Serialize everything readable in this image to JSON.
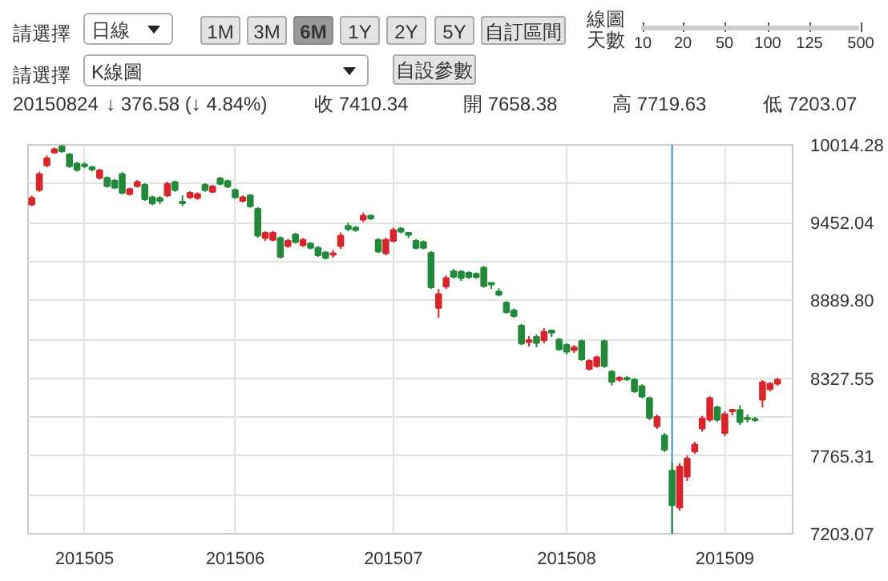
{
  "chart_data": {
    "type": "candlestick",
    "categories": [
      null,
      null,
      null,
      null,
      null,
      null,
      null,
      "201505",
      null,
      null,
      null,
      null,
      null,
      null,
      null,
      null,
      null,
      null,
      null,
      null,
      null,
      null,
      null,
      null,
      null,
      null,
      null,
      "201506",
      null,
      null,
      null,
      null,
      null,
      null,
      null,
      null,
      null,
      null,
      null,
      null,
      null,
      null,
      null,
      null,
      null,
      null,
      null,
      null,
      "201507",
      null,
      null,
      null,
      null,
      null,
      null,
      null,
      null,
      null,
      null,
      null,
      null,
      null,
      null,
      null,
      null,
      null,
      null,
      null,
      null,
      null,
      null,
      "201508",
      null,
      null,
      null,
      null,
      null,
      null,
      null,
      null,
      null,
      null,
      null,
      null,
      null,
      null,
      null,
      null,
      null,
      null,
      null,
      null,
      "201509",
      null,
      null,
      null,
      null,
      null,
      null,
      null
    ],
    "ohlc": [
      [
        9583,
        9648,
        9571,
        9629
      ],
      [
        9687,
        9821,
        9675,
        9803
      ],
      [
        9867,
        9937,
        9852,
        9918
      ],
      [
        9960,
        9995,
        9948,
        9983
      ],
      [
        10003,
        10014,
        9956,
        9968
      ],
      [
        9945,
        9956,
        9847,
        9860
      ],
      [
        9879,
        9891,
        9821,
        9833
      ],
      [
        9872,
        9887,
        9847,
        9860
      ],
      [
        9852,
        9864,
        9823,
        9837
      ],
      [
        9775,
        9841,
        9763,
        9829
      ],
      [
        9775,
        9786,
        9705,
        9717
      ],
      [
        9756,
        9768,
        9694,
        9705
      ],
      [
        9803,
        9818,
        9656,
        9667
      ],
      [
        9659,
        9705,
        9648,
        9694
      ],
      [
        9717,
        9760,
        9705,
        9745
      ],
      [
        9725,
        9737,
        9609,
        9621
      ],
      [
        9636,
        9648,
        9578,
        9590
      ],
      [
        9629,
        9644,
        9586,
        9609
      ],
      [
        9648,
        9748,
        9636,
        9733
      ],
      [
        9745,
        9756,
        9675,
        9687
      ],
      [
        9604,
        9648,
        9571,
        9592
      ],
      [
        9636,
        9679,
        9624,
        9667
      ],
      [
        9629,
        9671,
        9617,
        9659
      ],
      [
        9725,
        9737,
        9675,
        9687
      ],
      [
        9675,
        9725,
        9664,
        9714
      ],
      [
        9771,
        9783,
        9722,
        9733
      ],
      [
        9753,
        9763,
        9702,
        9714
      ],
      [
        9687,
        9699,
        9624,
        9636
      ],
      [
        9609,
        9648,
        9598,
        9636
      ],
      [
        9648,
        9659,
        9560,
        9571
      ],
      [
        9552,
        9563,
        9343,
        9358
      ],
      [
        9340,
        9390,
        9320,
        9378
      ],
      [
        9328,
        9393,
        9317,
        9378
      ],
      [
        9340,
        9352,
        9193,
        9205
      ],
      [
        9282,
        9335,
        9270,
        9320
      ],
      [
        9367,
        9378,
        9301,
        9312
      ],
      [
        9289,
        9340,
        9277,
        9328
      ],
      [
        9301,
        9312,
        9259,
        9270
      ],
      [
        9270,
        9282,
        9205,
        9216
      ],
      [
        9236,
        9247,
        9185,
        9197
      ],
      [
        9220,
        9254,
        9197,
        9231
      ],
      [
        9282,
        9382,
        9262,
        9358
      ],
      [
        9428,
        9451,
        9390,
        9405
      ],
      [
        9416,
        9428,
        9386,
        9398
      ],
      [
        9474,
        9525,
        9456,
        9502
      ],
      [
        9502,
        9513,
        9471,
        9482
      ],
      [
        9328,
        9340,
        9231,
        9243
      ],
      [
        9231,
        9343,
        9216,
        9328
      ],
      [
        9320,
        9416,
        9309,
        9398
      ],
      [
        9409,
        9421,
        9375,
        9386
      ],
      [
        9378,
        9382,
        9340,
        9363
      ],
      [
        9320,
        9332,
        9259,
        9270
      ],
      [
        9312,
        9324,
        9259,
        9270
      ],
      [
        9233,
        9245,
        8973,
        8985
      ],
      [
        8835,
        8973,
        8765,
        8935
      ],
      [
        8991,
        9072,
        8973,
        9051
      ],
      [
        9100,
        9118,
        9048,
        9062
      ],
      [
        9097,
        9109,
        9031,
        9051
      ],
      [
        9089,
        9100,
        9046,
        9058
      ],
      [
        9081,
        9092,
        9046,
        9058
      ],
      [
        9127,
        9139,
        8981,
        8993
      ],
      [
        9016,
        9020,
        8973,
        9005
      ],
      [
        8954,
        8977,
        8919,
        8931
      ],
      [
        8873,
        8884,
        8794,
        8805
      ],
      [
        8819,
        8831,
        8765,
        8777
      ],
      [
        8707,
        8719,
        8568,
        8578
      ],
      [
        8588,
        8632,
        8557,
        8603
      ],
      [
        8626,
        8644,
        8551,
        8583
      ],
      [
        8601,
        8690,
        8580,
        8664
      ],
      [
        8672,
        8678,
        8626,
        8657
      ],
      [
        8607,
        8618,
        8526,
        8537
      ],
      [
        8568,
        8580,
        8499,
        8519
      ],
      [
        8530,
        8568,
        8510,
        8551
      ],
      [
        8595,
        8607,
        8453,
        8464
      ],
      [
        8395,
        8464,
        8383,
        8453
      ],
      [
        8415,
        8491,
        8403,
        8479
      ],
      [
        8595,
        8607,
        8403,
        8415
      ],
      [
        8375,
        8387,
        8274,
        8302
      ],
      [
        8317,
        8343,
        8302,
        8331
      ],
      [
        8329,
        8343,
        8308,
        8320
      ],
      [
        8317,
        8329,
        8221,
        8233
      ],
      [
        8271,
        8283,
        8183,
        8195
      ],
      [
        8183,
        8195,
        8025,
        8040
      ],
      [
        7979,
        8065,
        7961,
        8048
      ],
      [
        7913,
        7932,
        7793,
        7811
      ],
      [
        7658.38,
        7719.63,
        7203.07,
        7410.34
      ],
      [
        7392,
        7712,
        7371,
        7689
      ],
      [
        7616,
        7770,
        7585,
        7747
      ],
      [
        7797,
        7869,
        7782,
        7848
      ],
      [
        7963,
        8056,
        7940,
        8036
      ],
      [
        8028,
        8198,
        8013,
        8183
      ],
      [
        8117,
        8129,
        8013,
        8028
      ],
      [
        7932,
        8088,
        7909,
        8068
      ],
      [
        8088,
        8106,
        8059,
        8100
      ],
      [
        8098,
        8132,
        7990,
        8010
      ],
      [
        8042,
        8065,
        8007,
        8031
      ],
      [
        8033,
        8048,
        8013,
        8025
      ],
      [
        8172,
        8314,
        8117,
        8299
      ],
      [
        8248,
        8299,
        8233,
        8287
      ],
      [
        8287,
        8331,
        8273,
        8317
      ]
    ],
    "colors": [
      "#d7262b",
      "#d7262b",
      "#d7262b",
      "#d7262b",
      "#23893a",
      "#23893a",
      "#23893a",
      "#23893a",
      "#23893a",
      "#d7262b",
      "#23893a",
      "#23893a",
      "#23893a",
      "#d7262b",
      "#d7262b",
      "#23893a",
      "#23893a",
      "#23893a",
      "#d7262b",
      "#23893a",
      "#23893a",
      "#d7262b",
      "#d7262b",
      "#23893a",
      "#d7262b",
      "#23893a",
      "#23893a",
      "#23893a",
      "#d7262b",
      "#23893a",
      "#23893a",
      "#d7262b",
      "#d7262b",
      "#23893a",
      "#d7262b",
      "#23893a",
      "#d7262b",
      "#23893a",
      "#23893a",
      "#23893a",
      "#d7262b",
      "#d7262b",
      "#23893a",
      "#23893a",
      "#d7262b",
      "#23893a",
      "#23893a",
      "#d7262b",
      "#d7262b",
      "#23893a",
      "#23893a",
      "#23893a",
      "#23893a",
      "#23893a",
      "#d7262b",
      "#d7262b",
      "#23893a",
      "#23893a",
      "#23893a",
      "#23893a",
      "#23893a",
      "#23893a",
      "#23893a",
      "#23893a",
      "#23893a",
      "#23893a",
      "#d7262b",
      "#23893a",
      "#d7262b",
      "#23893a",
      "#23893a",
      "#23893a",
      "#d7262b",
      "#23893a",
      "#d7262b",
      "#d7262b",
      "#23893a",
      "#23893a",
      "#d7262b",
      "#23893a",
      "#23893a",
      "#23893a",
      "#23893a",
      "#d7262b",
      "#23893a",
      "#23893a",
      "#d7262b",
      "#d7262b",
      "#d7262b",
      "#d7262b",
      "#d7262b",
      "#23893a",
      "#d7262b",
      "#d7262b",
      "#23893a",
      "#23893a",
      "#23893a",
      "#d7262b",
      "#d7262b",
      "#d7262b"
    ],
    "ylim": [
      7203.07,
      10014.28
    ],
    "yticks": [
      7203.07,
      {
        "value": 7484.19,
        "label": null
      },
      7765.31,
      {
        "value": 8046.43,
        "label": null
      },
      8327.55,
      {
        "value": 8608.675,
        "label": null
      },
      {
        "value": 8889.8,
        "label": "8889.80"
      },
      {
        "value": 9170.92,
        "label": null
      },
      9452.04,
      {
        "value": 9733.16,
        "label": null
      },
      10014.28
    ],
    "grid": true,
    "annotations": [
      "請選擇",
      "日線",
      "1M",
      "3M",
      "6M",
      "1Y",
      "2Y",
      "5Y",
      "自訂區間",
      "線圖天數",
      "10",
      "20",
      "50",
      "100",
      "125",
      "500",
      "請選擇",
      "K線圖",
      "自設參數",
      "20150824",
      "↓ 376.58 (↓ 4.84%)",
      "收 7410.34",
      "開 7658.38",
      "高 7719.63",
      "低 7203.07"
    ]
  }
}
